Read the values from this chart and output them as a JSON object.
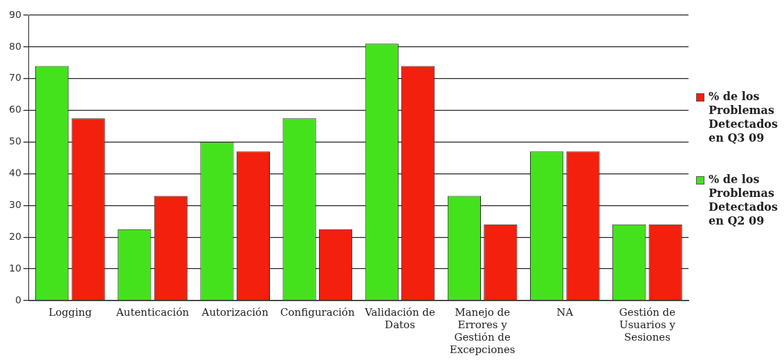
{
  "chart_data": {
    "type": "bar",
    "categories": [
      "Logging",
      "Autenticación",
      "Autorización",
      "Configuración",
      "Validación de Datos",
      "Manejo de Errores y Gestión de Excepciones",
      "NA",
      "Gestión de Usuarios y Sesiones"
    ],
    "series": [
      {
        "name": "% de los Problemas Detectados en Q2 09",
        "color": "#44e21c",
        "values": [
          74,
          22.5,
          50,
          57.5,
          81,
          33,
          47,
          24
        ]
      },
      {
        "name": "% de los Problemas Detectados en Q3 09",
        "color": "#f2200c",
        "values": [
          57.5,
          33,
          47,
          22.5,
          74,
          24,
          47,
          24
        ]
      }
    ],
    "ylim": [
      0,
      90
    ],
    "yticks": [
      0,
      10,
      20,
      30,
      40,
      50,
      60,
      70,
      80,
      90
    ],
    "grid": "y",
    "legend": "right"
  }
}
